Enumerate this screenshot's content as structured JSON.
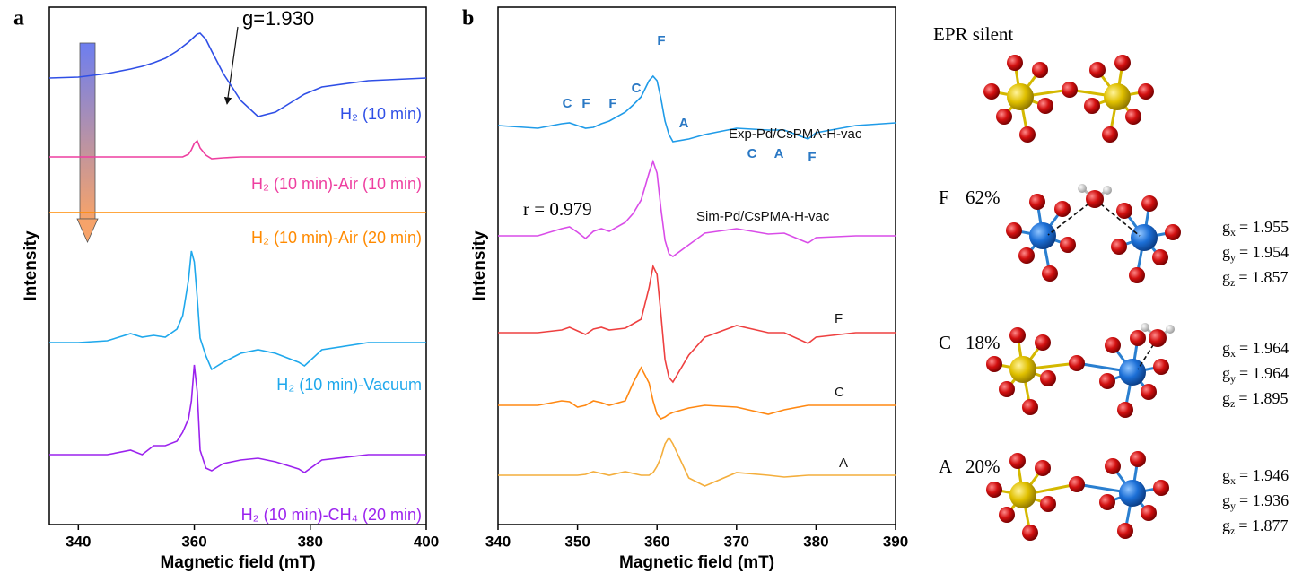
{
  "chart_data": [
    {
      "type": "line",
      "label": "a",
      "xlabel": "Magnetic field (mT)",
      "ylabel": "Intensity",
      "xlim": [
        335,
        400
      ],
      "xticks": [
        340,
        360,
        380,
        400
      ],
      "annotation": "g=1.930",
      "x": [
        335,
        340,
        345,
        349,
        351,
        353,
        355,
        357,
        358,
        359,
        359.5,
        360,
        360.5,
        361,
        362,
        363,
        365,
        368,
        371,
        374,
        378,
        379,
        382,
        390,
        400
      ],
      "series": [
        {
          "name": "H₂ (10 min)",
          "color": "#2f4fe6",
          "values": [
            0,
            0.1,
            0.5,
            1.0,
            1.3,
            1.7,
            2.2,
            3.0,
            3.5,
            4.0,
            4.3,
            4.6,
            4.9,
            5.0,
            4.3,
            3.0,
            0.5,
            -2.5,
            -4.3,
            -3.8,
            -2.2,
            -1.8,
            -1.0,
            -0.3,
            0
          ]
        },
        {
          "name": "H₂ (10 min)-Air (10 min)",
          "color": "#ee3fa0",
          "values": [
            0,
            0,
            0,
            0,
            0,
            0,
            0,
            0,
            0,
            0.3,
            0.8,
            1.5,
            1.8,
            1.0,
            0.2,
            -0.2,
            -0.1,
            0,
            0,
            0,
            0,
            0,
            0,
            0,
            0
          ]
        },
        {
          "name": "H₂ (10 min)-Air (20 min)",
          "color": "#ff8a00",
          "values": [
            0,
            0,
            0,
            0,
            0,
            0,
            0,
            0,
            0,
            0,
            0,
            0,
            0,
            0,
            0,
            0,
            0,
            0,
            0,
            0,
            0,
            0,
            0,
            0,
            0
          ]
        },
        {
          "name": "H₂ (10 min)-Vacuum",
          "color": "#1fa8ec",
          "values": [
            0,
            0,
            0.2,
            1.0,
            0.6,
            0.8,
            0.6,
            1.5,
            3,
            7,
            10.2,
            9,
            5,
            0.5,
            -1.5,
            -3,
            -2.2,
            -1.2,
            -0.8,
            -1.2,
            -2.2,
            -2.6,
            -0.8,
            0,
            0
          ]
        },
        {
          "name": "H₂ (10 min)-CH₄ (20 min)",
          "color": "#9b22ee",
          "values": [
            0,
            0,
            0,
            0.5,
            0,
            1.0,
            1.0,
            1.5,
            2.5,
            4,
            6,
            10,
            7,
            0.5,
            -1.5,
            -1.8,
            -1.0,
            -0.6,
            -0.4,
            -0.8,
            -1.6,
            -2.0,
            -0.6,
            0,
            0
          ]
        }
      ]
    },
    {
      "type": "line",
      "label": "b",
      "xlabel": "Magnetic field (mT)",
      "ylabel": "Intensity",
      "xlim": [
        340,
        390
      ],
      "xticks": [
        340,
        350,
        360,
        370,
        380,
        390
      ],
      "annotation": "r = 0.979",
      "peak_labels": [
        "C",
        "F",
        "F",
        "C",
        "F",
        "A",
        "C",
        "A",
        "F"
      ],
      "x": [
        340,
        345,
        348,
        349,
        350,
        351,
        352,
        353,
        354,
        356,
        357,
        358,
        359,
        359.5,
        360,
        360.5,
        361,
        361.5,
        362,
        364,
        366,
        370,
        374,
        376,
        379,
        380,
        385,
        390
      ],
      "series": [
        {
          "name": "Exp-Pd/CsPMA-H-vac",
          "color": "#1f9be8",
          "values": [
            0,
            -0.3,
            0.2,
            0.3,
            0,
            -0.3,
            -0.2,
            0.2,
            0.5,
            1.5,
            2.3,
            3.2,
            5,
            5.5,
            5,
            3,
            0.5,
            -1.0,
            -1.8,
            -1.5,
            -1.0,
            -0.3,
            -0.5,
            -0.5,
            -1.5,
            -0.8,
            0,
            0.3
          ]
        },
        {
          "name": "Sim-Pd/CsPMA-H-vac",
          "color": "#d94ce8",
          "values": [
            0,
            0,
            0.8,
            1.0,
            0.4,
            -0.3,
            0.5,
            0.8,
            0.5,
            1.5,
            2.5,
            4,
            7,
            8.3,
            7,
            3,
            -0.5,
            -2.0,
            -2.3,
            -1.0,
            0.3,
            0.8,
            0.2,
            0.3,
            -0.8,
            -0.2,
            0,
            0
          ]
        },
        {
          "name": "F",
          "color": "#ee4040",
          "values": [
            0,
            0,
            0.3,
            0.6,
            0.2,
            -0.2,
            0.4,
            0.6,
            0.3,
            0.5,
            1,
            1.5,
            5,
            7.4,
            6.5,
            2,
            -3,
            -5,
            -5.5,
            -2.5,
            -0.5,
            0.8,
            0,
            0,
            -1.2,
            -0.5,
            0,
            0
          ]
        },
        {
          "name": "C",
          "color": "#ff8812",
          "values": [
            0,
            0,
            0.5,
            0.4,
            -0.2,
            0,
            0.5,
            0.3,
            0,
            0.5,
            2.5,
            4.2,
            2.5,
            0.5,
            -1.0,
            -1.5,
            -1.3,
            -1.0,
            -0.8,
            -0.3,
            0,
            -0.2,
            -1.0,
            -0.5,
            0,
            0,
            0,
            0
          ]
        },
        {
          "name": "A",
          "color": "#f4ae3c",
          "values": [
            0,
            0,
            0,
            0,
            0,
            0.1,
            0.4,
            0.2,
            0,
            0.4,
            0.2,
            0,
            0,
            0.3,
            1.0,
            2.0,
            3.5,
            4.2,
            3.5,
            -0.3,
            -1.2,
            0.3,
            0,
            -0.2,
            0,
            0,
            0,
            0
          ]
        }
      ]
    }
  ],
  "structures": [
    {
      "label": "EPR silent"
    },
    {
      "label": "F",
      "percent": "62%",
      "g": [
        {
          "symbol": "g",
          "sub": "x",
          "text": "= 1.955"
        },
        {
          "symbol": "g",
          "sub": "y",
          "text": "= 1.954"
        },
        {
          "symbol": "g",
          "sub": "z",
          "text": "= 1.857"
        }
      ]
    },
    {
      "label": "C",
      "percent": "18%",
      "g": [
        {
          "symbol": "g",
          "sub": "x",
          "text": "= 1.964"
        },
        {
          "symbol": "g",
          "sub": "y",
          "text": "= 1.964"
        },
        {
          "symbol": "g",
          "sub": "z",
          "text": "= 1.895"
        }
      ]
    },
    {
      "label": "A",
      "percent": "20%",
      "g": [
        {
          "symbol": "g",
          "sub": "x",
          "text": "= 1.946"
        },
        {
          "symbol": "g",
          "sub": "y",
          "text": "= 1.936"
        },
        {
          "symbol": "g",
          "sub": "z",
          "text": "= 1.877"
        }
      ]
    }
  ]
}
